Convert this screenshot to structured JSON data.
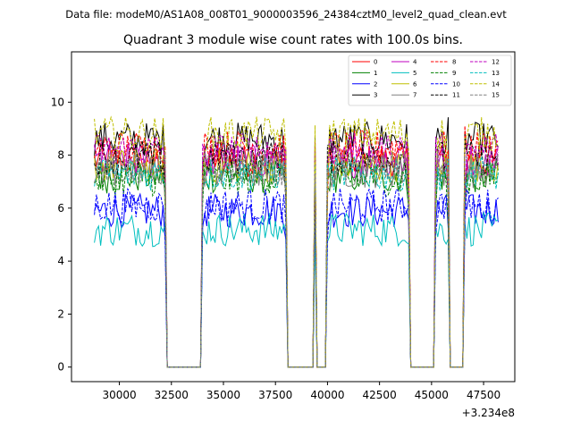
{
  "chart_data": {
    "type": "line",
    "suptitle": "Data file: modeM0/AS1A08_008T01_9000003596_24384cztM0_level2_quad_clean.evt",
    "title": "Quadrant 3 module wise count rates with 100.0s bins.",
    "xlabel": "",
    "ylabel": "",
    "x_offset_label": "+3.234e8",
    "xlim": [
      27700,
      49000
    ],
    "ylim": [
      -0.55,
      11.9
    ],
    "x_ticks": [
      30000,
      32500,
      35000,
      37500,
      40000,
      42500,
      45000,
      47500
    ],
    "x_tick_labels": [
      "30000",
      "32500",
      "35000",
      "37500",
      "40000",
      "42500",
      "45000",
      "47500"
    ],
    "y_ticks": [
      0,
      2,
      4,
      6,
      8,
      10
    ],
    "y_tick_labels": [
      "0",
      "2",
      "4",
      "6",
      "8",
      "10"
    ],
    "bin_size": 100,
    "grid": false,
    "legend_position": "top-right",
    "legend_columns": 4,
    "segments": [
      {
        "start": 28800,
        "end": 32200,
        "level": "on"
      },
      {
        "start": 32300,
        "end": 33900,
        "level": "off"
      },
      {
        "start": 34000,
        "end": 38000,
        "level": "on"
      },
      {
        "start": 38100,
        "end": 39300,
        "level": "off"
      },
      {
        "start": 39400,
        "end": 39400,
        "level": "on"
      },
      {
        "start": 39500,
        "end": 39900,
        "level": "off"
      },
      {
        "start": 40000,
        "end": 43900,
        "level": "on"
      },
      {
        "start": 44000,
        "end": 45100,
        "level": "off"
      },
      {
        "start": 45200,
        "end": 45800,
        "level": "on"
      },
      {
        "start": 45900,
        "end": 46500,
        "level": "off"
      },
      {
        "start": 46600,
        "end": 48200,
        "level": "on"
      }
    ],
    "series": [
      {
        "name": "0",
        "color": "#ff0000",
        "dash": "solid",
        "mean_rate": 7.8
      },
      {
        "name": "1",
        "color": "#008000",
        "dash": "solid",
        "mean_rate": 7.2
      },
      {
        "name": "2",
        "color": "#0000ff",
        "dash": "solid",
        "mean_rate": 5.9
      },
      {
        "name": "3",
        "color": "#000000",
        "dash": "solid",
        "mean_rate": 8.6
      },
      {
        "name": "4",
        "color": "#bf00bf",
        "dash": "solid",
        "mean_rate": 7.8
      },
      {
        "name": "5",
        "color": "#00bfbf",
        "dash": "solid",
        "mean_rate": 5.2
      },
      {
        "name": "6",
        "color": "#bfbf00",
        "dash": "solid",
        "mean_rate": 7.6
      },
      {
        "name": "7",
        "color": "#808080",
        "dash": "solid",
        "mean_rate": 7.4
      },
      {
        "name": "8",
        "color": "#ff0000",
        "dash": "dashed",
        "mean_rate": 8.3
      },
      {
        "name": "9",
        "color": "#008000",
        "dash": "dashed",
        "mean_rate": 7.1
      },
      {
        "name": "10",
        "color": "#0000ff",
        "dash": "dashed",
        "mean_rate": 6.1
      },
      {
        "name": "11",
        "color": "#000000",
        "dash": "dashed",
        "mean_rate": 7.9
      },
      {
        "name": "12",
        "color": "#bf00bf",
        "dash": "dashed",
        "mean_rate": 8.2
      },
      {
        "name": "13",
        "color": "#00bfbf",
        "dash": "dashed",
        "mean_rate": 7.3
      },
      {
        "name": "14",
        "color": "#bfbf00",
        "dash": "dashed",
        "mean_rate": 8.8
      },
      {
        "name": "15",
        "color": "#808080",
        "dash": "dashed",
        "mean_rate": 7.5
      }
    ]
  }
}
